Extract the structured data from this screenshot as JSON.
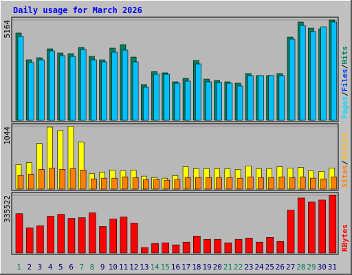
{
  "title": "Daily usage for March 2026",
  "chart_data": [
    {
      "type": "bar",
      "ylim": [
        0,
        5164
      ],
      "yticks": [
        5164
      ],
      "legend_separator": "/",
      "series": [
        {
          "name": "Hits",
          "color": "#00805c",
          "values": [
            4492,
            3113,
            3219,
            3678,
            3466,
            3431,
            3749,
            3289,
            3113,
            3714,
            3891,
            3254,
            1839,
            2511,
            2441,
            1981,
            2158,
            3077,
            2122,
            2051,
            1981,
            1910,
            2405,
            2299,
            2299,
            2405,
            4280,
            5058,
            4740,
            4704,
            5164
          ]
        },
        {
          "name": "Files",
          "color": "#00c0ff",
          "values": [
            4315,
            2971,
            3113,
            3572,
            3325,
            3289,
            3643,
            3113,
            3006,
            3502,
            3608,
            3006,
            1698,
            2370,
            2370,
            1910,
            2016,
            2900,
            1981,
            1945,
            1910,
            1769,
            2299,
            2299,
            2299,
            2299,
            4174,
            4881,
            4563,
            4810,
            5058
          ]
        }
      ],
      "legend": [
        {
          "name": "Pages",
          "color": "#00e0ff"
        },
        {
          "name": "Files",
          "color": "#0040ff"
        },
        {
          "name": "Hits",
          "color": "#00805c"
        }
      ]
    },
    {
      "type": "bar",
      "ylim": [
        0,
        1044
      ],
      "yticks": [
        1044
      ],
      "legend_separator": "/",
      "series": [
        {
          "name": "Visits",
          "color": "#ffff00",
          "values": [
            409,
            443,
            760,
            1033,
            976,
            1044,
            783,
            261,
            284,
            318,
            306,
            318,
            216,
            193,
            182,
            227,
            375,
            341,
            341,
            341,
            341,
            329,
            386,
            341,
            341,
            375,
            352,
            363,
            306,
            295,
            352
          ]
        },
        {
          "name": "Sites",
          "color": "#ff8000",
          "values": [
            227,
            250,
            329,
            352,
            329,
            341,
            318,
            170,
            182,
            182,
            204,
            193,
            159,
            159,
            148,
            159,
            193,
            193,
            193,
            193,
            193,
            182,
            204,
            193,
            193,
            204,
            193,
            204,
            182,
            170,
            204
          ]
        }
      ],
      "legend": [
        {
          "name": "Sites",
          "color": "#ff8000"
        },
        {
          "name": "Visits",
          "color": "#ffc000"
        }
      ]
    },
    {
      "type": "bar",
      "ylim": [
        0,
        335522
      ],
      "yticks": [
        335522
      ],
      "series": [
        {
          "name": "KBytes",
          "color": "#ff0000",
          "values": [
            228926,
            146039,
            157880,
            213138,
            224979,
            201297,
            205244,
            232873,
            153933,
            197350,
            209191,
            173668,
            31576,
            55258,
            59205,
            47364,
            63152,
            98675,
            78940,
            78940,
            59205,
            78940,
            86834,
            63152,
            90781,
            67099,
            248661,
            319707,
            296025,
            307866,
            335522
          ]
        }
      ],
      "legend": [
        {
          "name": "KBytes",
          "color": "#ff0000"
        }
      ],
      "categories": [
        "1",
        "2",
        "3",
        "4",
        "5",
        "6",
        "7",
        "8",
        "9",
        "10",
        "11",
        "12",
        "13",
        "14",
        "15",
        "16",
        "17",
        "18",
        "19",
        "20",
        "21",
        "22",
        "23",
        "24",
        "25",
        "26",
        "27",
        "28",
        "29",
        "30",
        "31"
      ],
      "category_colors": [
        "#00805c",
        "#000080",
        "#000080",
        "#000080",
        "#000080",
        "#000080",
        "#00805c",
        "#00805c",
        "#000080",
        "#000080",
        "#000080",
        "#000080",
        "#000080",
        "#00805c",
        "#00805c",
        "#000080",
        "#000080",
        "#000080",
        "#000080",
        "#000080",
        "#00805c",
        "#00805c",
        "#000080",
        "#000080",
        "#000080",
        "#000080",
        "#000080",
        "#00805c",
        "#00805c",
        "#000080",
        "#000080"
      ]
    }
  ]
}
